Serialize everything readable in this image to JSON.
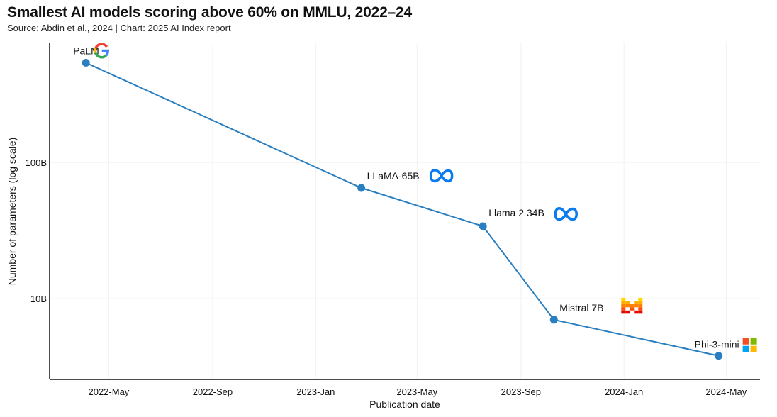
{
  "title": "Smallest AI models scoring above 60% on MMLU, 2022–24",
  "subtitle": "Source: Abdin et al., 2024 | Chart: 2025 AI Index report",
  "chart_data": {
    "type": "line",
    "title": "Smallest AI models scoring above 60% on MMLU, 2022–24",
    "xlabel": "Publication date",
    "ylabel": "Number of parameters (log scale)",
    "yscale": "log",
    "xlim": [
      "2022-02-20",
      "2024-06-10"
    ],
    "ylim": [
      2550000000,
      760000000000
    ],
    "grid": true,
    "line_color": "#2a7fc1",
    "x_ticks": [
      {
        "date": "2022-05-01",
        "label": "2022-May"
      },
      {
        "date": "2022-09-01",
        "label": "2022-Sep"
      },
      {
        "date": "2023-01-01",
        "label": "2023-Jan"
      },
      {
        "date": "2023-05-01",
        "label": "2023-May"
      },
      {
        "date": "2023-09-01",
        "label": "2023-Sep"
      },
      {
        "date": "2024-01-01",
        "label": "2024-Jan"
      },
      {
        "date": "2024-05-01",
        "label": "2024-May"
      }
    ],
    "y_ticks": [
      {
        "value": 10000000000,
        "label": "10B"
      },
      {
        "value": 100000000000,
        "label": "100B"
      }
    ],
    "points": [
      {
        "date": "2022-04-04",
        "params": 540000000000,
        "label": "PaLM",
        "logo": "google-logo"
      },
      {
        "date": "2023-02-24",
        "params": 65000000000,
        "label": "LLaMA-65B",
        "logo": "meta-logo"
      },
      {
        "date": "2023-07-18",
        "params": 34000000000,
        "label": "Llama 2 34B",
        "logo": "meta-logo"
      },
      {
        "date": "2023-10-10",
        "params": 7000000000,
        "label": "Mistral 7B",
        "logo": "mistral-logo"
      },
      {
        "date": "2024-04-22",
        "params": 3800000000,
        "label": "Phi-3-mini",
        "logo": "microsoft-logo"
      }
    ]
  }
}
